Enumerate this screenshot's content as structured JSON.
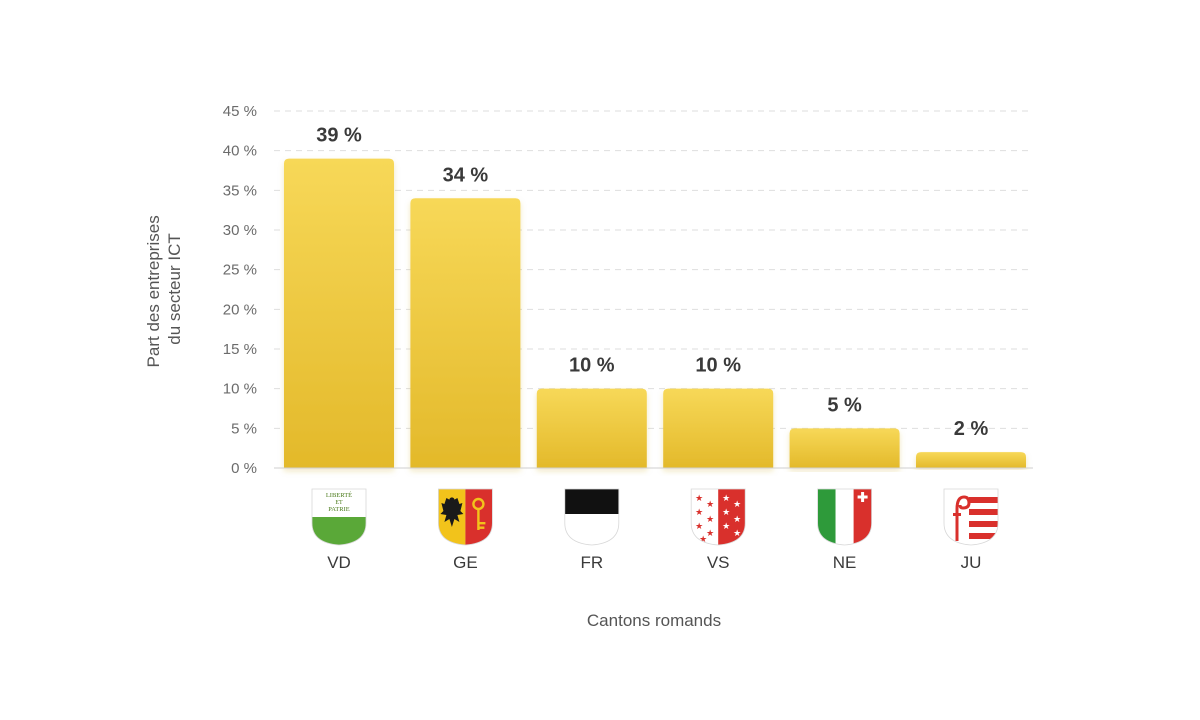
{
  "chart_data": {
    "type": "bar",
    "categories": [
      "VD",
      "GE",
      "FR",
      "VS",
      "NE",
      "JU"
    ],
    "values": [
      39,
      34,
      10,
      10,
      5,
      2
    ],
    "value_labels": [
      "39 %",
      "34 %",
      "10 %",
      "10 %",
      "5 %",
      "2 %"
    ],
    "ylabel_lines": [
      "Part des entreprises",
      "du secteur ICT"
    ],
    "xlabel": "Cantons romands",
    "ylim": [
      0,
      45
    ],
    "yticks": [
      0,
      5,
      10,
      15,
      20,
      25,
      30,
      35,
      40,
      45
    ],
    "ytick_labels": [
      "0 %",
      "5 %",
      "10 %",
      "15 %",
      "20 %",
      "25 %",
      "30 %",
      "35 %",
      "40 %",
      "45 %"
    ],
    "grid": true,
    "bar_colors": {
      "top": "#f7d858",
      "bottom": "#e3b92a"
    }
  },
  "flags": [
    {
      "icon": "vaud-coat-of-arms-icon",
      "motto_line1": "LIBERTÉ",
      "motto_line2": "ET",
      "motto_line3": "PATRIE"
    },
    {
      "icon": "geneva-coat-of-arms-icon"
    },
    {
      "icon": "fribourg-coat-of-arms-icon"
    },
    {
      "icon": "valais-coat-of-arms-icon"
    },
    {
      "icon": "neuchatel-coat-of-arms-icon"
    },
    {
      "icon": "jura-coat-of-arms-icon"
    }
  ]
}
